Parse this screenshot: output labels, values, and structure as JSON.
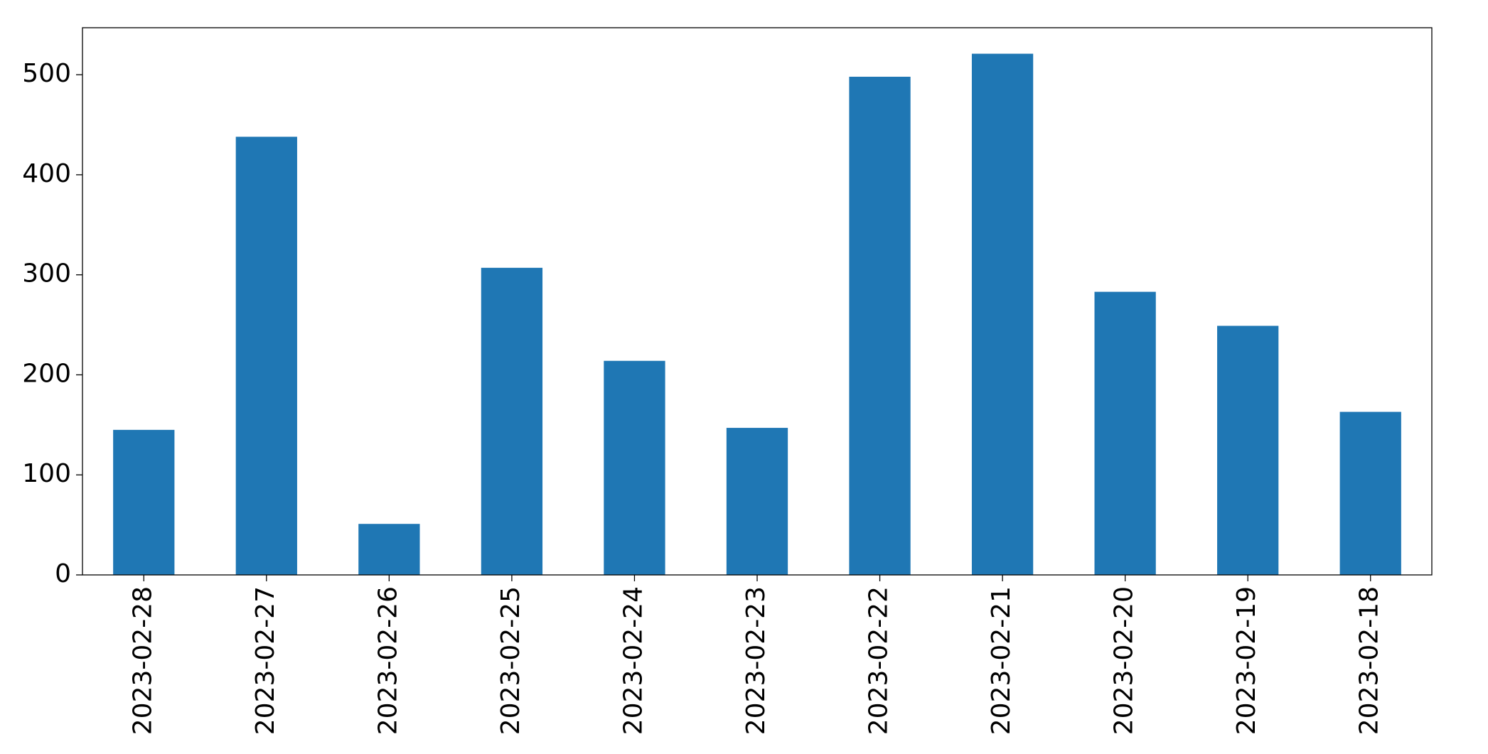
{
  "chart_data": {
    "type": "bar",
    "categories": [
      "2023-02-28",
      "2023-02-27",
      "2023-02-26",
      "2023-02-25",
      "2023-02-24",
      "2023-02-23",
      "2023-02-22",
      "2023-02-21",
      "2023-02-20",
      "2023-02-19",
      "2023-02-18"
    ],
    "values": [
      145,
      438,
      51,
      307,
      214,
      147,
      498,
      521,
      283,
      249,
      163
    ],
    "color": "#1f77b4",
    "ylim": [
      0,
      547
    ],
    "yticks": [
      0,
      100,
      200,
      300,
      400,
      500
    ],
    "grid": false
  }
}
